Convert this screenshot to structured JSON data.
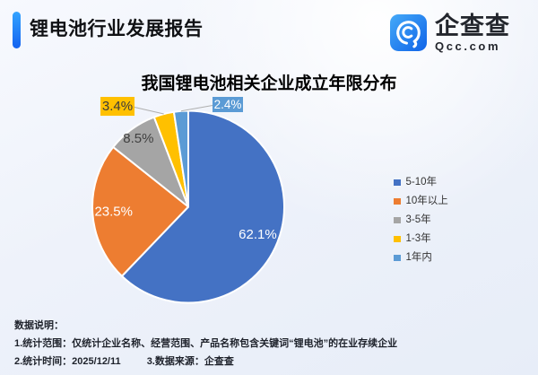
{
  "header": {
    "title": "锂电池行业发展报告",
    "logo_name": "企查查",
    "logo_domain": "Qcc.com"
  },
  "theme": {
    "accent_top": "#34A3FF",
    "accent_bottom": "#1463F0",
    "leader_line_color": "#AFAFAF"
  },
  "chart_data": {
    "type": "pie",
    "title": "我国锂电池相关企业成立年限分布",
    "legend_position": "right",
    "start_angle_deg": 0,
    "direction": "clockwise",
    "slices": [
      {
        "label": "5-10年",
        "value": 62.1,
        "display": "62.1%",
        "color": "#4472C4",
        "label_color": "#FFFFFF"
      },
      {
        "label": "10年以上",
        "value": 23.5,
        "display": "23.5%",
        "color": "#ED7D31",
        "label_color": "#FFFFFF"
      },
      {
        "label": "3-5年",
        "value": 8.5,
        "display": "8.5%",
        "color": "#A5A5A5",
        "label_color": "#404040"
      },
      {
        "label": "1-3年",
        "value": 3.4,
        "display": "3.4%",
        "color": "#FFC000",
        "label_color": "#3A3A3A"
      },
      {
        "label": "1年内",
        "value": 2.4,
        "display": "2.4%",
        "color": "#5B9BD5",
        "label_color": "#FFFFFF"
      }
    ]
  },
  "notes": {
    "heading": "数据说明：",
    "line1": "1.统计范围：仅统计企业名称、经营范围、产品名称包含关键词“锂电池”的在业存续企业",
    "line2_left": "2.统计时间：2025/12/11",
    "line2_right": "3.数据来源：企查查"
  }
}
